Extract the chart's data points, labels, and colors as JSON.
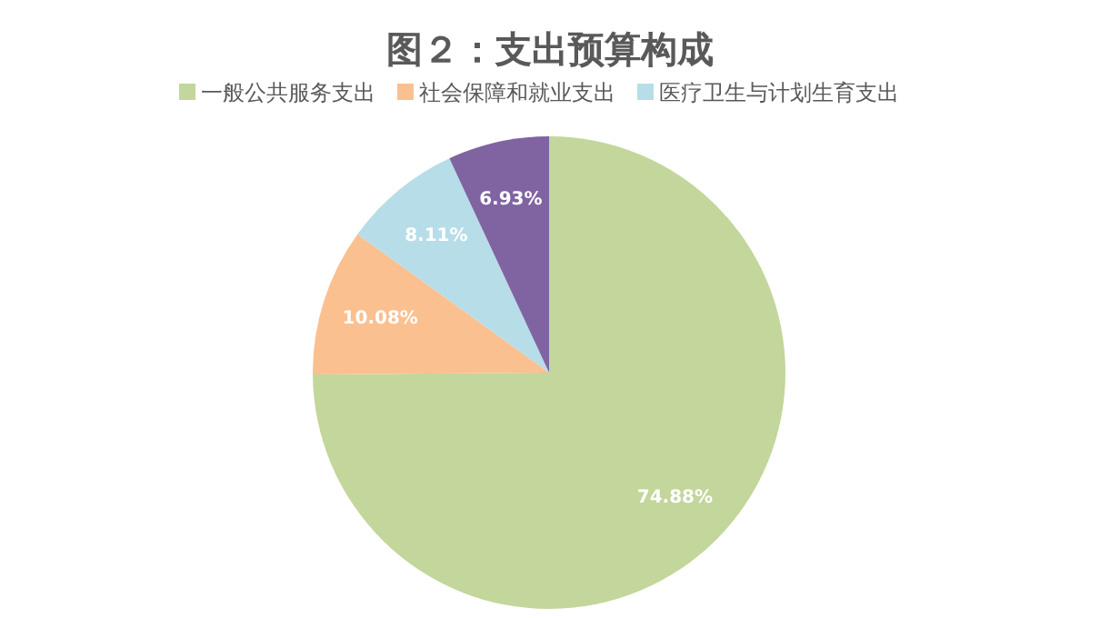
{
  "chart_data": {
    "type": "pie",
    "title": "图２：支出预算构成",
    "categories": [
      "一般公共服务支出",
      "社会保障和就业支出",
      "医疗卫生与计划生育支出",
      null
    ],
    "values": [
      74.88,
      10.08,
      8.11,
      6.93
    ],
    "colors": [
      "#c3d69b",
      "#fac090",
      "#b7dde8",
      "#8064a2"
    ],
    "value_labels": [
      "74.88%",
      "10.08%",
      "8.11%",
      "6.93%"
    ],
    "legend": "top"
  }
}
